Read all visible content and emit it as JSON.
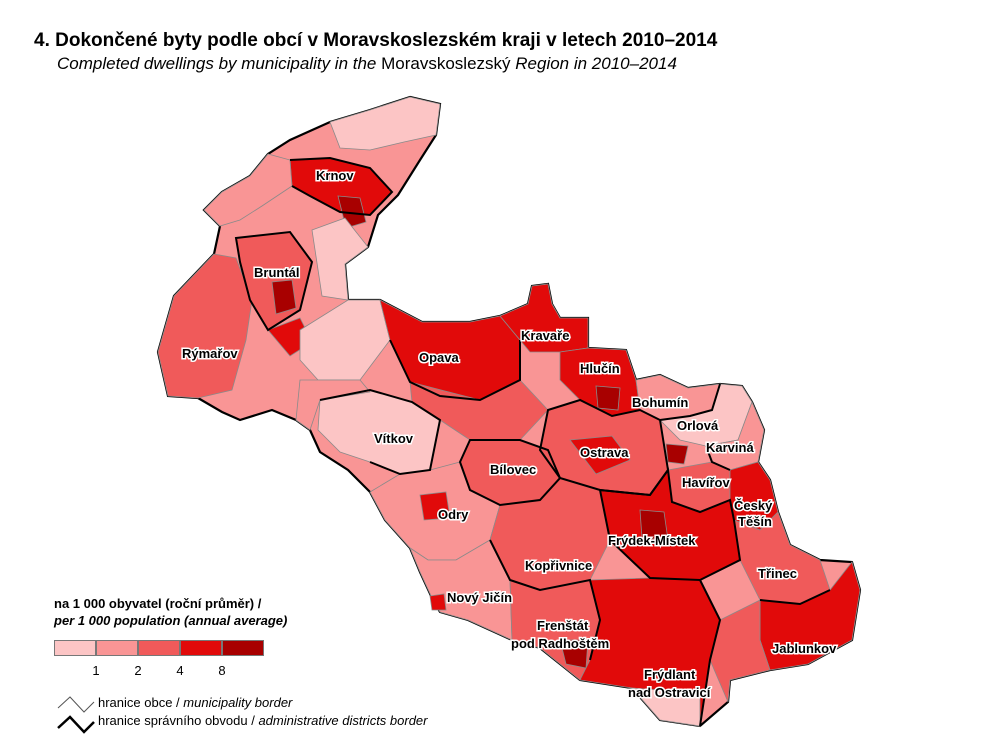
{
  "title": "4. Dokončené byty podle obcí v Moravskoslezském kraji v letech 2010–2014",
  "subtitle": {
    "part1": "Completed dwellings by municipality in the ",
    "region": "Moravskoslezský",
    "part2": " Region in 2010–2014"
  },
  "colors": {
    "class1": "#fcc5c5",
    "class2": "#f99595",
    "class3": "#f05a5a",
    "class4": "#e10a0a",
    "class5": "#a80000",
    "municipality_border": "#8a8a8a",
    "district_border": "#000000"
  },
  "districts": [
    {
      "name": "Krnov"
    },
    {
      "name": "Bruntál"
    },
    {
      "name": "Rýmařov"
    },
    {
      "name": "Opava"
    },
    {
      "name": "Kravaře"
    },
    {
      "name": "Hlučín"
    },
    {
      "name": "Bohumín"
    },
    {
      "name": "Orlová"
    },
    {
      "name": "Karviná"
    },
    {
      "name": "Vítkov"
    },
    {
      "name": "Ostrava"
    },
    {
      "name": "Bílovec"
    },
    {
      "name": "Havířov"
    },
    {
      "name": "Český"
    },
    {
      "name": "Těšín"
    },
    {
      "name": "Odry"
    },
    {
      "name": "Frýdek-Místek"
    },
    {
      "name": "Kopřivnice"
    },
    {
      "name": "Třinec"
    },
    {
      "name": "Nový Jičín"
    },
    {
      "name": "Frenštát"
    },
    {
      "name": "pod Radhoštěm"
    },
    {
      "name": "Jablunkov"
    },
    {
      "name": "Frýdlant"
    },
    {
      "name": "nad Ostravicí"
    }
  ],
  "legend": {
    "title_cz": "na 1 000 obyvatel (roční průměr) /",
    "title_en": "per 1 000 population (annual average)",
    "ticks": [
      "1",
      "2",
      "4",
      "8"
    ],
    "municipality_border_cz": "hranice obce / ",
    "municipality_border_en": "municipality border",
    "district_border_cz": "hranice správního obvodu / ",
    "district_border_en": "administrative districts border"
  }
}
